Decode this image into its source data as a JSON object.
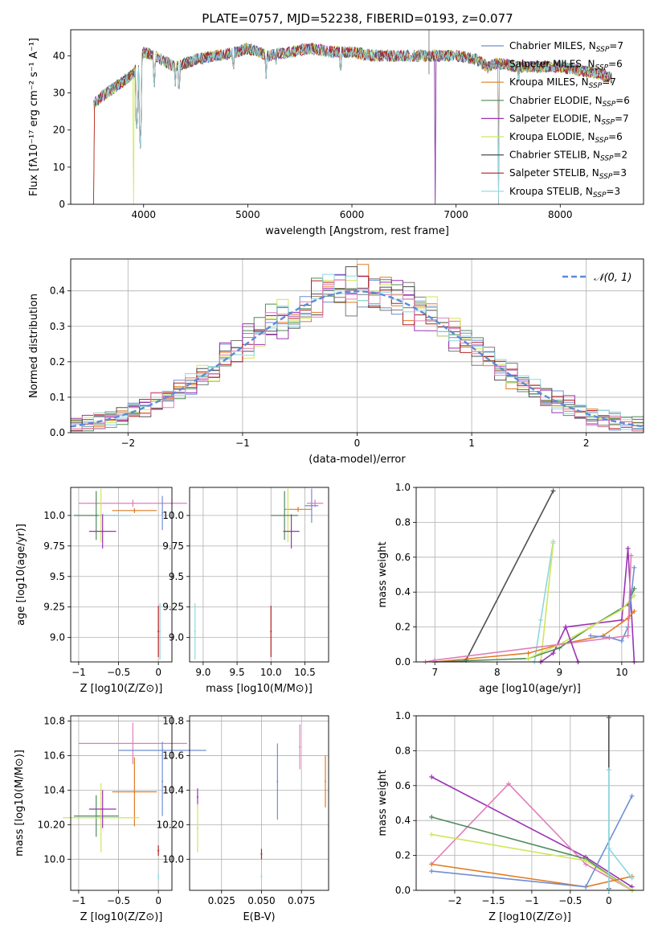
{
  "title": "PLATE=0757, MJD=52238, FIBERID=0193, z=0.077",
  "colors": {
    "Chabrier MILES": "#6f8fd4",
    "Salpeter MILES": "#7a7a7a",
    "Kroupa MILES": "#e07b24",
    "Chabrier ELODIE": "#4f8a5a",
    "Salpeter ELODIE": "#9b32b5",
    "Kroupa ELODIE": "#cfe65a",
    "Chabrier STELIB": "#505050",
    "Salpeter STELIB": "#b22222",
    "Kroupa STELIB": "#8fd6e0",
    "Pink": "#e07fb8",
    "Gauss": "#5b8bd8"
  },
  "chart_data": [
    {
      "id": "spectrum",
      "type": "line",
      "title": "PLATE=0757, MJD=52238, FIBERID=0193, z=0.077",
      "xlabel": "wavelength [Angstrom, rest frame]",
      "ylabel": "Flux [f_λ 10^-17 erg cm^-2 s^-1 A^-1]",
      "xlim": [
        3300,
        8800
      ],
      "ylim": [
        0,
        47
      ],
      "xticks": [
        4000,
        5000,
        6000,
        7000,
        8000
      ],
      "yticks": [
        0,
        10,
        20,
        30,
        40
      ],
      "grid": false,
      "legend": "top-right",
      "legend_entries": [
        {
          "name": "Chabrier MILES",
          "nssp": "7",
          "key": "Chabrier MILES"
        },
        {
          "name": "Salpeter MILES",
          "nssp": "6",
          "key": "Salpeter MILES"
        },
        {
          "name": "Kroupa MILES",
          "nssp": "7",
          "key": "Kroupa MILES"
        },
        {
          "name": "Chabrier ELODIE",
          "nssp": "6",
          "key": "Chabrier ELODIE"
        },
        {
          "name": "Salpeter ELODIE",
          "nssp": "7",
          "key": "Salpeter ELODIE"
        },
        {
          "name": "Kroupa ELODIE",
          "nssp": "6",
          "key": "Kroupa ELODIE"
        },
        {
          "name": "Chabrier STELIB",
          "nssp": "2",
          "key": "Chabrier STELIB"
        },
        {
          "name": "Salpeter STELIB",
          "nssp": "3",
          "key": "Salpeter STELIB"
        },
        {
          "name": "Kroupa STELIB",
          "nssp": "3",
          "key": "Kroupa STELIB"
        }
      ],
      "continuum": {
        "x": [
          3520,
          3600,
          3700,
          3800,
          3900,
          3960,
          4000,
          4100,
          4300,
          4500,
          4700,
          4900,
          5000,
          5200,
          5400,
          5600,
          5800,
          6000,
          6200,
          6400,
          6600,
          6800,
          7000,
          7200,
          7300,
          7400,
          7600,
          7800,
          8000,
          8200,
          8400,
          8500
        ],
        "y": [
          27,
          29,
          31,
          33,
          35,
          38,
          41,
          40,
          37,
          39,
          40,
          41,
          42,
          40,
          41,
          42,
          41,
          41,
          40,
          40,
          40,
          40,
          40,
          39,
          37,
          38,
          37,
          37,
          37,
          36,
          35,
          34
        ]
      },
      "absorption_lines": [
        {
          "x": 3933,
          "y": 18
        },
        {
          "x": 3968,
          "y": 15
        },
        {
          "x": 4102,
          "y": 30
        },
        {
          "x": 4305,
          "y": 31
        },
        {
          "x": 4340,
          "y": 28
        },
        {
          "x": 4861,
          "y": 34
        },
        {
          "x": 5175,
          "y": 33
        },
        {
          "x": 5270,
          "y": 36
        },
        {
          "x": 5892,
          "y": 33
        },
        {
          "x": 6563,
          "y": 36
        },
        {
          "x": 7600,
          "y": 33
        }
      ],
      "model_cutoffs": [
        {
          "series": "Salpeter STELIB",
          "x": 3520
        },
        {
          "series": "Kroupa MILES",
          "x": 3520
        },
        {
          "series": "Kroupa ELODIE",
          "x": 3905
        },
        {
          "series": "Chabrier ELODIE",
          "x": 6800
        },
        {
          "series": "Salpeter ELODIE",
          "x": 6800
        },
        {
          "series": "Kroupa STELIB",
          "x": 7410
        },
        {
          "series": "Salpeter STELIB",
          "x": 7410
        },
        {
          "series": "Kroupa MILES",
          "x": 7410
        }
      ],
      "spikes": [
        {
          "x": 6740,
          "y": 47
        }
      ]
    },
    {
      "id": "residuals",
      "type": "line",
      "xlabel": "(data-model)/error",
      "ylabel": "Normed distribution",
      "xlim": [
        -2.5,
        2.5
      ],
      "ylim": [
        0,
        0.49
      ],
      "xticks": [
        -2,
        -1,
        0,
        1,
        2
      ],
      "yticks": [
        0.0,
        0.1,
        0.2,
        0.3,
        0.4
      ],
      "grid": true,
      "legend": "top-right",
      "legend_label": "𝒩(0, 1)",
      "bins": {
        "start": -2.5,
        "width": 0.1,
        "count": 50
      }
    },
    {
      "id": "age-vs-Z",
      "type": "scatter",
      "xlabel": "Z [log10(Z/Z⊙)]",
      "ylabel": "age  [log10(age/yr)]",
      "xlim": [
        -1.1,
        0.17
      ],
      "ylim": [
        8.8,
        10.23
      ],
      "xticks": [
        -1.0,
        -0.5,
        0.0
      ],
      "yticks": [
        9.0,
        9.25,
        9.5,
        9.75,
        10.0
      ],
      "grid": true,
      "points": [
        {
          "c": "Pink",
          "x": -0.32,
          "y": 10.1,
          "xe": 0.68,
          "ye": 0.03
        },
        {
          "c": "Kroupa MILES",
          "x": -0.3,
          "y": 10.04,
          "xe": 0.28,
          "ye": 0.02
        },
        {
          "c": "Chabrier MILES",
          "x": 0.05,
          "y": 10.02,
          "xe": 0.0,
          "ye": 0.14
        },
        {
          "c": "Kroupa ELODIE",
          "x": -0.72,
          "y": 10.0,
          "xe": 0.0,
          "ye": 0.22
        },
        {
          "c": "Chabrier ELODIE",
          "x": -0.78,
          "y": 10.0,
          "xe": 0.28,
          "ye": 0.2
        },
        {
          "c": "Kroupa STELIB",
          "x": -0.55,
          "y": 10.0,
          "xe": 0.2,
          "ye": 0.0
        },
        {
          "c": "Salpeter ELODIE",
          "x": -0.7,
          "y": 9.87,
          "xe": 0.17,
          "ye": 0.14
        },
        {
          "c": "Salpeter STELIB",
          "x": 0.0,
          "y": 9.05,
          "xe": 0.0,
          "ye": 0.21
        },
        {
          "c": "Kroupa STELIB",
          "x": 0.02,
          "y": 9.05,
          "xe": 0.0,
          "ye": 0.23
        }
      ]
    },
    {
      "id": "age-vs-mass",
      "type": "scatter",
      "xlabel": "mass [log10(M/M⊙)]",
      "ylabel": "",
      "xlim": [
        8.8,
        10.85
      ],
      "ylim": [
        8.8,
        10.23
      ],
      "xticks": [
        9.0,
        9.5,
        10.0,
        10.5
      ],
      "xticklabels": [
        "9.0",
        "9.5",
        "10.0",
        "10.5"
      ],
      "yticks": [
        9.0,
        9.25,
        9.5,
        9.75,
        10.0
      ],
      "grid": true,
      "points": [
        {
          "c": "Pink",
          "x": 10.65,
          "y": 10.1,
          "xe": 0.12,
          "ye": 0.03
        },
        {
          "c": "Kroupa MILES",
          "x": 10.4,
          "y": 10.05,
          "xe": 0.2,
          "ye": 0.02
        },
        {
          "c": "Chabrier MILES",
          "x": 10.6,
          "y": 10.08,
          "xe": 0.1,
          "ye": 0.14
        },
        {
          "c": "Kroupa ELODIE",
          "x": 10.25,
          "y": 10.0,
          "xe": 0.0,
          "ye": 0.22
        },
        {
          "c": "Chabrier ELODIE",
          "x": 10.2,
          "y": 10.0,
          "xe": 0.2,
          "ye": 0.2
        },
        {
          "c": "Salpeter ELODIE",
          "x": 10.3,
          "y": 9.87,
          "xe": 0.12,
          "ye": 0.14
        },
        {
          "c": "Salpeter STELIB",
          "x": 10.0,
          "y": 9.05,
          "xe": 0.0,
          "ye": 0.21
        },
        {
          "c": "Kroupa STELIB",
          "x": 8.88,
          "y": 9.05,
          "xe": 0.0,
          "ye": 0.23
        }
      ]
    },
    {
      "id": "mass-weight-vs-age",
      "type": "line",
      "xlabel": "age  [log10(age/yr)]",
      "ylabel": "mass weight",
      "xlim": [
        6.7,
        10.35
      ],
      "ylim": [
        0,
        1.0
      ],
      "xticks": [
        7,
        8,
        9,
        10
      ],
      "yticks": [
        0.0,
        0.2,
        0.4,
        0.6,
        0.8,
        1.0
      ],
      "grid": true,
      "series": [
        {
          "c": "Chabrier STELIB",
          "x": [
            7.5,
            8.9
          ],
          "y": [
            0.01,
            0.98
          ]
        },
        {
          "c": "Kroupa STELIB",
          "x": [
            8.6,
            8.7,
            8.9
          ],
          "y": [
            0.0,
            0.24,
            0.69
          ]
        },
        {
          "c": "Kroupa ELODIE",
          "x": [
            8.7,
            8.9
          ],
          "y": [
            0.0,
            0.68
          ]
        },
        {
          "c": "Salpeter ELODIE",
          "x": [
            8.7,
            8.9,
            9.1,
            10.0,
            10.1,
            10.2
          ],
          "y": [
            0.0,
            0.05,
            0.2,
            0.24,
            0.65,
            0.0
          ]
        },
        {
          "c": "Kroupa MILES",
          "x": [
            7.0,
            8.5,
            9.0,
            9.7,
            10.1,
            10.2
          ],
          "y": [
            0.0,
            0.05,
            0.1,
            0.15,
            0.25,
            0.29
          ]
        },
        {
          "c": "Chabrier ELODIE",
          "x": [
            7.0,
            8.5,
            9.0,
            9.5,
            10.1,
            10.2
          ],
          "y": [
            0.0,
            0.02,
            0.08,
            0.2,
            0.33,
            0.42
          ]
        },
        {
          "c": "Kroupa ELODIE",
          "x": [
            8.5,
            9.0,
            9.5,
            10.0,
            10.2
          ],
          "y": [
            0.02,
            0.1,
            0.2,
            0.3,
            0.38
          ]
        },
        {
          "c": "Chabrier MILES",
          "x": [
            9.5,
            9.8,
            10.0,
            10.1,
            10.2
          ],
          "y": [
            0.15,
            0.14,
            0.12,
            0.2,
            0.54
          ]
        },
        {
          "c": "Pink",
          "x": [
            6.85,
            7.0,
            10.1,
            10.15
          ],
          "y": [
            0.0,
            0.01,
            0.15,
            0.61
          ]
        },
        {
          "c": "Salpeter ELODIE",
          "x": [
            9.1,
            9.3
          ],
          "y": [
            0.2,
            0.0
          ]
        }
      ]
    },
    {
      "id": "mass-vs-Z",
      "type": "scatter",
      "xlabel": "Z [log10(Z/Z⊙)]",
      "ylabel": "mass [log10(M/M⊙)]",
      "xlim": [
        -1.1,
        0.17
      ],
      "ylim": [
        9.82,
        10.83
      ],
      "xticks": [
        -1.0,
        -0.5,
        0.0
      ],
      "yticks": [
        10.0,
        10.2,
        10.4,
        10.6,
        10.8
      ],
      "grid": true,
      "points": [
        {
          "c": "Pink",
          "x": -0.32,
          "y": 10.67,
          "xe": 0.68,
          "ye": 0.12
        },
        {
          "c": "Chabrier MILES",
          "x": 0.05,
          "y": 10.63,
          "xe": 0.55,
          "ye": 0.05
        },
        {
          "c": "Chabrier MILES",
          "x": 0.05,
          "y": 10.45,
          "xe": 0.0,
          "ye": 0.2
        },
        {
          "c": "Kroupa MILES",
          "x": -0.3,
          "y": 10.39,
          "xe": 0.28,
          "ye": 0.2
        },
        {
          "c": "Chabrier ELODIE",
          "x": -0.78,
          "y": 10.25,
          "xe": 0.28,
          "ye": 0.12
        },
        {
          "c": "Kroupa ELODIE",
          "x": -0.72,
          "y": 10.24,
          "xe": 0.48,
          "ye": 0.2
        },
        {
          "c": "Salpeter ELODIE",
          "x": -0.7,
          "y": 10.29,
          "xe": 0.17,
          "ye": 0.11
        },
        {
          "c": "Salpeter STELIB",
          "x": 0.0,
          "y": 10.05,
          "xe": 0.0,
          "ye": 0.03
        },
        {
          "c": "Kroupa STELIB",
          "x": 0.0,
          "y": 9.9,
          "xe": 0.0,
          "ye": 0.02
        }
      ]
    },
    {
      "id": "mass-vs-EBV",
      "type": "scatter",
      "xlabel": "E(B-V)",
      "ylabel": "",
      "xlim": [
        0.005,
        0.092
      ],
      "ylim": [
        9.82,
        10.83
      ],
      "xticks": [
        0.025,
        0.05,
        0.075
      ],
      "xticklabels": [
        "0.025",
        "0.050",
        "0.075"
      ],
      "yticks": [
        10.0,
        10.2,
        10.4,
        10.6,
        10.8
      ],
      "grid": true,
      "points": [
        {
          "c": "Pink",
          "x": 0.074,
          "y": 10.65,
          "xe": 0,
          "ye": 0.13
        },
        {
          "c": "Chabrier MILES",
          "x": 0.06,
          "y": 10.45,
          "xe": 0,
          "ye": 0.22
        },
        {
          "c": "Kroupa MILES",
          "x": 0.09,
          "y": 10.45,
          "xe": 0,
          "ye": 0.15
        },
        {
          "c": "Salpeter ELODIE",
          "x": 0.01,
          "y": 10.36,
          "xe": 0,
          "ye": 0.05
        },
        {
          "c": "Kroupa ELODIE",
          "x": 0.01,
          "y": 10.18,
          "xe": 0,
          "ye": 0.14
        },
        {
          "c": "Salpeter STELIB",
          "x": 0.05,
          "y": 10.03,
          "xe": 0,
          "ye": 0.03
        },
        {
          "c": "Kroupa STELIB",
          "x": 0.05,
          "y": 9.9,
          "xe": 0,
          "ye": 0.02
        }
      ]
    },
    {
      "id": "mass-weight-vs-Z",
      "type": "line",
      "xlabel": "Z [log10(Z/Z⊙)]",
      "ylabel": "mass weight",
      "xlim": [
        -2.5,
        0.45
      ],
      "ylim": [
        0,
        1.0
      ],
      "xticks": [
        -2.0,
        -1.5,
        -1.0,
        -0.5,
        0.0
      ],
      "yticks": [
        0.0,
        0.2,
        0.4,
        0.6,
        0.8,
        1.0
      ],
      "grid": true,
      "series": [
        {
          "c": "Salpeter ELODIE",
          "x": [
            -2.3,
            -0.3,
            0.3
          ],
          "y": [
            0.65,
            0.19,
            0.02
          ]
        },
        {
          "c": "Pink",
          "x": [
            -2.3,
            -1.3,
            -0.3,
            0.3
          ],
          "y": [
            0.15,
            0.61,
            0.15,
            0.0
          ]
        },
        {
          "c": "Chabrier ELODIE",
          "x": [
            -2.3,
            -0.3,
            0.3
          ],
          "y": [
            0.42,
            0.18,
            0.0
          ]
        },
        {
          "c": "Kroupa ELODIE",
          "x": [
            -2.3,
            -0.3,
            0.3
          ],
          "y": [
            0.32,
            0.17,
            0.0
          ]
        },
        {
          "c": "Kroupa MILES",
          "x": [
            -2.3,
            -0.3,
            0.3
          ],
          "y": [
            0.15,
            0.02,
            0.08
          ]
        },
        {
          "c": "Chabrier MILES",
          "x": [
            -2.3,
            -0.3,
            0.3
          ],
          "y": [
            0.11,
            0.02,
            0.54
          ]
        },
        {
          "c": "Chabrier STELIB",
          "x": [
            0.0,
            0.0
          ],
          "y": [
            0.01,
            0.99
          ]
        },
        {
          "c": "Kroupa STELIB",
          "x": [
            0.0,
            0.3
          ],
          "y": [
            0.24,
            0.07
          ]
        },
        {
          "c": "Kroupa STELIB",
          "x": [
            0.0,
            0.0
          ],
          "y": [
            0.0,
            0.69
          ]
        }
      ]
    }
  ]
}
